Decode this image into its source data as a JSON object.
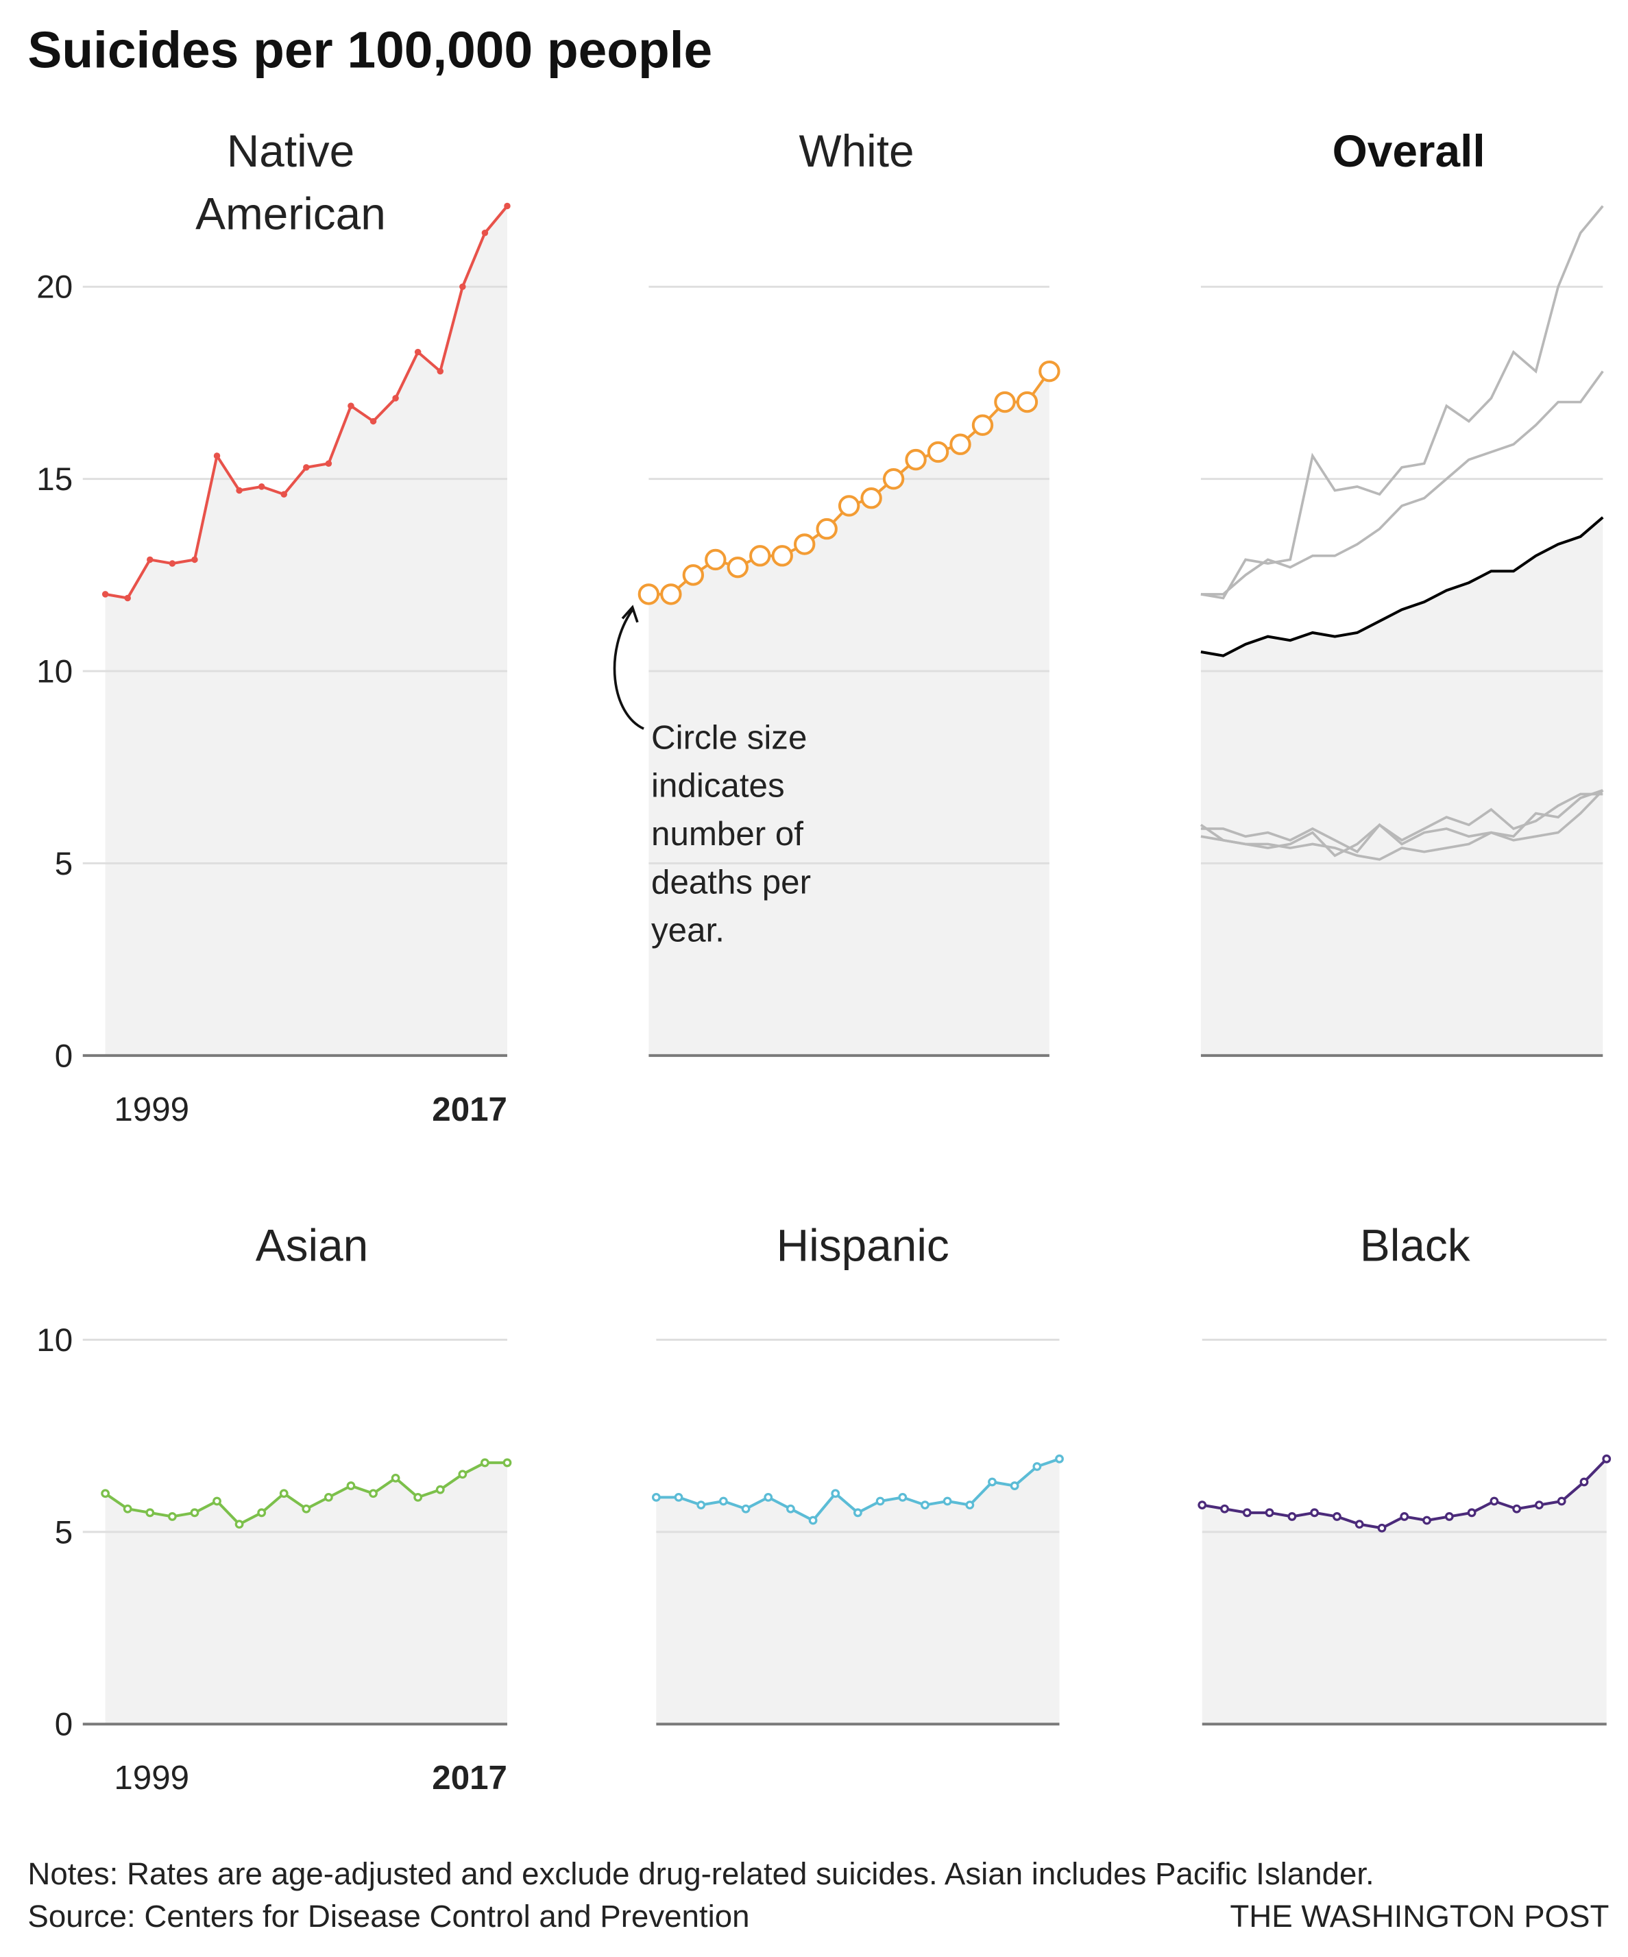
{
  "title": "Suicides per 100,000 people",
  "notes": "Notes: Rates are age-adjusted and exclude drug-related suicides. Asian includes Pacific Islander.",
  "source": "Source: Centers for Disease Control and Prevention",
  "credit": "THE WASHINGTON POST",
  "chart_data": [
    {
      "type": "line",
      "title": [
        "Native",
        "American"
      ],
      "color": "#e8524a",
      "marker": "dot",
      "categories": [
        "1999",
        null,
        null,
        null,
        null,
        null,
        null,
        null,
        null,
        null,
        null,
        null,
        null,
        null,
        null,
        null,
        null,
        null,
        "2017"
      ],
      "values": [
        12.0,
        11.9,
        12.9,
        12.8,
        12.9,
        15.6,
        14.7,
        14.8,
        14.6,
        15.3,
        15.4,
        16.9,
        16.5,
        17.1,
        18.3,
        17.8,
        20.0,
        21.4,
        22.1
      ],
      "ylim": [
        0,
        22.5
      ],
      "yticks": [
        0,
        5,
        10,
        15,
        20
      ],
      "grid": true
    },
    {
      "type": "line",
      "title": [
        "White"
      ],
      "color": "#f39c34",
      "marker": "circle",
      "values": [
        12.0,
        12.0,
        12.5,
        12.9,
        12.7,
        13.0,
        13.0,
        13.3,
        13.7,
        14.3,
        14.5,
        15.0,
        15.5,
        15.7,
        15.9,
        16.4,
        17.0,
        17.0,
        17.8
      ],
      "annotation": [
        "Circle size",
        "indicates",
        "number of",
        "deaths per",
        "year."
      ],
      "ylim": [
        0,
        22.5
      ],
      "yticks": [
        0,
        5,
        10,
        15,
        20
      ],
      "grid": true
    },
    {
      "type": "line",
      "title": [
        "Overall"
      ],
      "color": "#000000",
      "marker": "none",
      "highlight": true,
      "context_color": "#b8b8b8",
      "values": [
        10.5,
        10.4,
        10.7,
        10.9,
        10.8,
        11.0,
        10.9,
        11.0,
        11.3,
        11.6,
        11.8,
        12.1,
        12.3,
        12.6,
        12.6,
        13.0,
        13.3,
        13.5,
        14.0
      ],
      "ylim": [
        0,
        22.5
      ],
      "yticks": [
        0,
        5,
        10,
        15,
        20
      ],
      "grid": true
    },
    {
      "type": "line",
      "title": [
        "Asian"
      ],
      "color": "#7cc04b",
      "marker": "ring",
      "categories": [
        "1999",
        null,
        null,
        null,
        null,
        null,
        null,
        null,
        null,
        null,
        null,
        null,
        null,
        null,
        null,
        null,
        null,
        null,
        "2017"
      ],
      "values": [
        6.0,
        5.6,
        5.5,
        5.4,
        5.5,
        5.8,
        5.2,
        5.5,
        6.0,
        5.6,
        5.9,
        6.2,
        6.0,
        6.4,
        5.9,
        6.1,
        6.5,
        6.8,
        6.8
      ],
      "ylim": [
        0,
        10
      ],
      "yticks": [
        0,
        5,
        10
      ],
      "grid": true
    },
    {
      "type": "line",
      "title": [
        "Hispanic"
      ],
      "color": "#5bbcd6",
      "marker": "ring",
      "values": [
        5.9,
        5.9,
        5.7,
        5.8,
        5.6,
        5.9,
        5.6,
        5.3,
        6.0,
        5.5,
        5.8,
        5.9,
        5.7,
        5.8,
        5.7,
        6.3,
        6.2,
        6.7,
        6.9
      ],
      "ylim": [
        0,
        10
      ],
      "yticks": [
        0,
        5,
        10
      ],
      "grid": true
    },
    {
      "type": "line",
      "title": [
        "Black"
      ],
      "color": "#4b2a7a",
      "marker": "ring",
      "values": [
        5.7,
        5.6,
        5.5,
        5.5,
        5.4,
        5.5,
        5.4,
        5.2,
        5.1,
        5.4,
        5.3,
        5.4,
        5.5,
        5.8,
        5.6,
        5.7,
        5.8,
        6.3,
        6.9
      ],
      "ylim": [
        0,
        10
      ],
      "yticks": [
        0,
        5,
        10
      ],
      "grid": true
    }
  ]
}
